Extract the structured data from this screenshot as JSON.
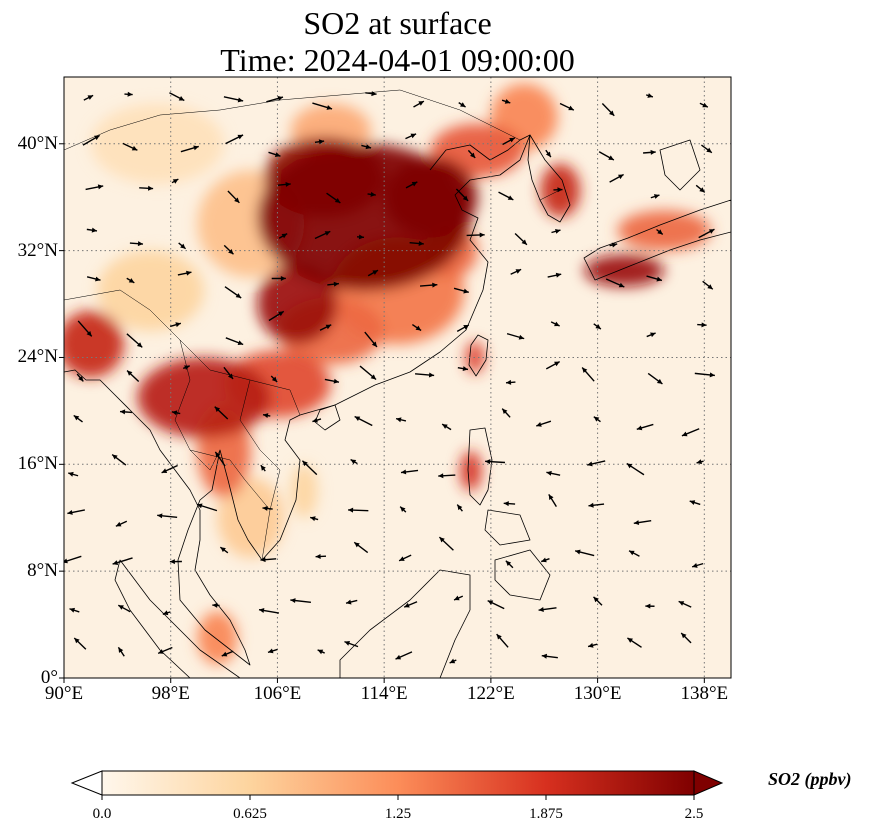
{
  "title_line1": "SO2 at surface",
  "title_line2": "Time: 2024-04-01 09:00:00",
  "map": {
    "lon_range": [
      90,
      140
    ],
    "lat_range": [
      0,
      45
    ],
    "lon_ticks": [
      {
        "value": 90,
        "label": "90°E"
      },
      {
        "value": 98,
        "label": "98°E"
      },
      {
        "value": 106,
        "label": "106°E"
      },
      {
        "value": 114,
        "label": "114°E"
      },
      {
        "value": 122,
        "label": "122°E"
      },
      {
        "value": 130,
        "label": "130°E"
      },
      {
        "value": 138,
        "label": "138°E"
      }
    ],
    "lat_ticks": [
      {
        "value": 0,
        "label": "0°"
      },
      {
        "value": 8,
        "label": "8°N"
      },
      {
        "value": 16,
        "label": "16°N"
      },
      {
        "value": 24,
        "label": "24°N"
      },
      {
        "value": 32,
        "label": "32°N"
      },
      {
        "value": 40,
        "label": "40°N"
      }
    ],
    "gridlines": "dotted",
    "colormap": "OrRd",
    "background_color": "#fdf1e1"
  },
  "colorbar": {
    "label": "SO2 (ppbv)",
    "min": 0.0,
    "max": 2.5,
    "extend": "both",
    "ticks": [
      {
        "value": 0.0,
        "label": "0.0"
      },
      {
        "value": 0.625,
        "label": "0.625"
      },
      {
        "value": 1.25,
        "label": "1.25"
      },
      {
        "value": 1.875,
        "label": "1.875"
      },
      {
        "value": 2.5,
        "label": "2.5"
      }
    ],
    "colors": [
      "#fff7ec",
      "#fdd49e",
      "#fc8d59",
      "#d7301f",
      "#7f0000"
    ]
  },
  "so2_regions": [
    {
      "lon": 112.5,
      "lat": 34.5,
      "rlon": 8,
      "rlat": 5.5,
      "value": 2.5
    },
    {
      "lon": 109.5,
      "lat": 37.5,
      "rlon": 4.5,
      "rlat": 3,
      "value": 2.4
    },
    {
      "lon": 117.5,
      "lat": 36,
      "rlon": 3.5,
      "rlat": 3,
      "value": 2.5
    },
    {
      "lon": 107.5,
      "lat": 28,
      "rlon": 3,
      "rlat": 3,
      "value": 2.3
    },
    {
      "lon": 115,
      "lat": 29,
      "rlon": 5,
      "rlat": 4,
      "value": 1.4
    },
    {
      "lon": 92,
      "lat": 25,
      "rlon": 2.5,
      "rlat": 2.5,
      "value": 2.0
    },
    {
      "lon": 100.5,
      "lat": 21,
      "rlon": 5,
      "rlat": 3,
      "value": 2.1
    },
    {
      "lon": 106,
      "lat": 22,
      "rlon": 4,
      "rlat": 2.5,
      "value": 1.7
    },
    {
      "lon": 102,
      "lat": 17,
      "rlon": 2,
      "rlat": 3.5,
      "value": 1.5
    },
    {
      "lon": 110,
      "lat": 26,
      "rlon": 4,
      "rlat": 2.5,
      "value": 1.5
    },
    {
      "lon": 121,
      "lat": 39.5,
      "rlon": 3.5,
      "rlat": 2,
      "value": 1.6
    },
    {
      "lon": 124.5,
      "lat": 42,
      "rlon": 2.5,
      "rlat": 2.5,
      "value": 1.3
    },
    {
      "lon": 127.2,
      "lat": 36.5,
      "rlon": 1.5,
      "rlat": 2,
      "value": 2.0
    },
    {
      "lon": 132,
      "lat": 30.5,
      "rlon": 3,
      "rlat": 1.2,
      "value": 2.3
    },
    {
      "lon": 135,
      "lat": 33.5,
      "rlon": 3.5,
      "rlat": 1.5,
      "value": 1.5
    },
    {
      "lon": 120.8,
      "lat": 24,
      "rlon": 0.7,
      "rlat": 1.2,
      "value": 1.8
    },
    {
      "lon": 120.5,
      "lat": 15.5,
      "rlon": 0.8,
      "rlat": 1.5,
      "value": 1.9
    },
    {
      "lon": 101.5,
      "lat": 3,
      "rlon": 1.5,
      "rlat": 2,
      "value": 1.3
    },
    {
      "lon": 96.5,
      "lat": 29,
      "rlon": 4,
      "rlat": 3,
      "value": 0.6
    },
    {
      "lon": 104,
      "lat": 34,
      "rlon": 4,
      "rlat": 4,
      "value": 0.8
    },
    {
      "lon": 97,
      "lat": 40,
      "rlon": 5,
      "rlat": 3,
      "value": 0.4
    },
    {
      "lon": 104,
      "lat": 12,
      "rlon": 2.5,
      "rlat": 3,
      "value": 0.7
    },
    {
      "lon": 108,
      "lat": 14,
      "rlon": 1,
      "rlat": 2,
      "value": 0.6
    },
    {
      "lon": 119,
      "lat": 32,
      "rlon": 2,
      "rlat": 2,
      "value": 1.5
    },
    {
      "lon": 110,
      "lat": 41,
      "rlon": 3,
      "rlat": 2,
      "value": 1.0
    }
  ]
}
